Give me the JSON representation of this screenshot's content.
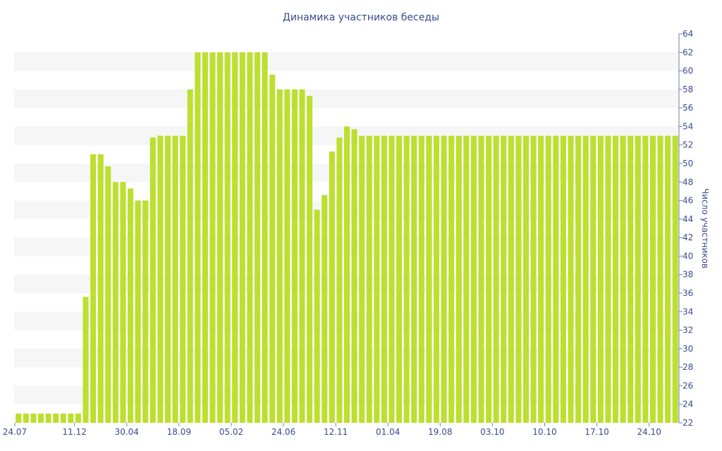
{
  "chart_data": {
    "type": "bar",
    "title": "Динамика участников беседы",
    "xlabel": "",
    "ylabel": "Число участников",
    "ylim": [
      22,
      64
    ],
    "y_ticks": [
      22,
      24,
      26,
      28,
      30,
      32,
      34,
      36,
      38,
      40,
      42,
      44,
      46,
      48,
      50,
      52,
      54,
      56,
      58,
      60,
      62,
      64
    ],
    "x_tick_labels": [
      {
        "index": 0,
        "label": "24.07"
      },
      {
        "index": 8,
        "label": "11.12"
      },
      {
        "index": 15,
        "label": "30.04"
      },
      {
        "index": 22,
        "label": "18.09"
      },
      {
        "index": 29,
        "label": "05.02"
      },
      {
        "index": 36,
        "label": "24.06"
      },
      {
        "index": 43,
        "label": "12.11"
      },
      {
        "index": 50,
        "label": "01.04"
      },
      {
        "index": 57,
        "label": "19.08"
      },
      {
        "index": 64,
        "label": "03.10"
      },
      {
        "index": 71,
        "label": "10.10"
      },
      {
        "index": 78,
        "label": "17.10"
      },
      {
        "index": 85,
        "label": "24.10"
      }
    ],
    "grid": "horizontal bands",
    "legend": "none",
    "bar_color": "#bddf2f",
    "values": [
      23,
      23,
      23,
      23,
      23,
      23,
      23,
      23,
      23,
      35.6,
      51,
      51,
      49.7,
      48,
      48,
      47.3,
      46,
      46,
      52.8,
      53,
      53,
      53,
      53,
      58,
      62,
      62,
      62,
      62,
      62,
      62,
      62,
      62,
      62,
      62,
      59.6,
      58,
      58,
      58,
      58,
      57.3,
      45,
      46.6,
      51.3,
      52.8,
      54,
      53.7,
      53,
      53,
      53,
      53,
      53,
      53,
      53,
      53,
      53,
      53,
      53,
      53,
      53,
      53,
      53,
      53,
      53,
      53,
      53,
      53,
      53,
      53,
      53,
      53,
      53,
      53,
      53,
      53,
      53,
      53,
      53,
      53,
      53,
      53,
      53,
      53,
      53,
      53,
      53,
      53,
      53,
      53,
      53
    ]
  }
}
